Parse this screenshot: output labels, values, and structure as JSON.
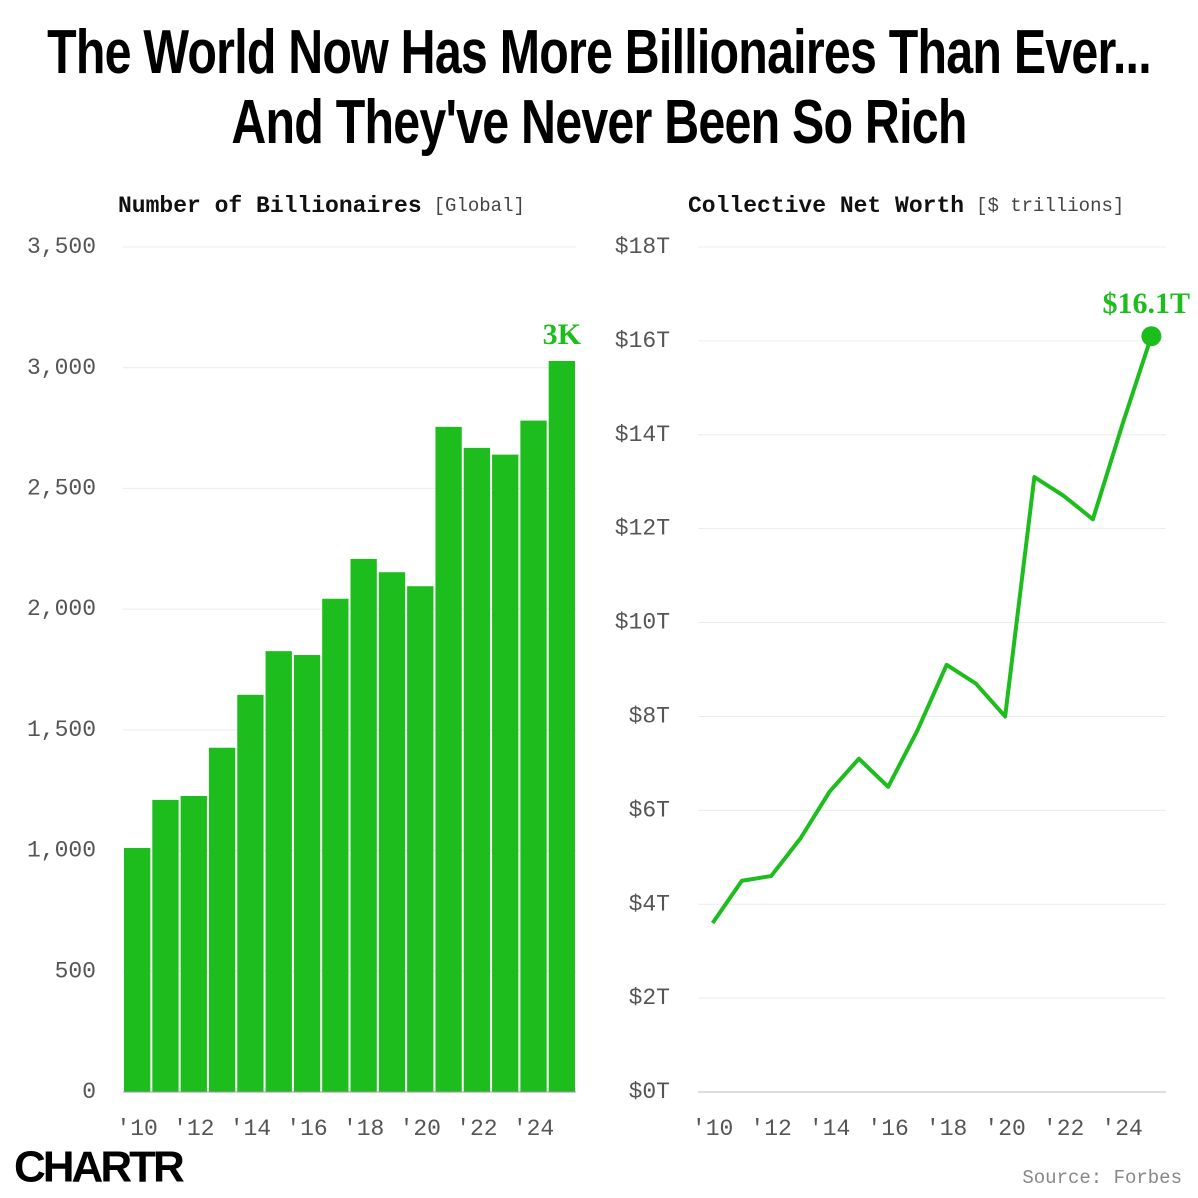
{
  "title": "The World Now Has More Billionaires Than Ever... And They've Never Been So Rich",
  "logo": "CHARTR",
  "source": "Source: Forbes",
  "chart_data": [
    {
      "type": "bar",
      "title": "Number of Billionaires",
      "subtitle": "[Global]",
      "categories": [
        "'10",
        null,
        "'12",
        null,
        "'14",
        null,
        "'16",
        null,
        "'18",
        null,
        "'20",
        null,
        "'22",
        null,
        "'24",
        null
      ],
      "values": [
        1011,
        1210,
        1226,
        1426,
        1645,
        1826,
        1810,
        2043,
        2208,
        2153,
        2095,
        2755,
        2668,
        2640,
        2781,
        3028
      ],
      "value_labels": [
        null,
        null,
        null,
        null,
        null,
        null,
        null,
        null,
        null,
        null,
        null,
        null,
        null,
        null,
        null,
        "3K"
      ],
      "color": "#1dbd1d",
      "ylim": [
        0,
        3500
      ],
      "yticks": [
        0,
        500,
        {
          "value": 1000,
          "label": "1,000"
        },
        {
          "value": 1500,
          "label": "1,500"
        },
        {
          "value": 2000,
          "label": "2,000"
        },
        {
          "value": 2500,
          "label": "2,500"
        },
        {
          "value": 3000,
          "label": "3,000"
        },
        {
          "value": 3500,
          "label": "3,500"
        }
      ],
      "grid": true
    },
    {
      "type": "line",
      "title": "Collective Net Worth",
      "subtitle": "[$ trillions]",
      "categories": [
        "'10",
        null,
        "'12",
        null,
        "'14",
        null,
        "'16",
        null,
        "'18",
        null,
        "'20",
        null,
        "'22",
        null,
        "'24",
        null
      ],
      "values": [
        3.6,
        4.5,
        4.6,
        5.4,
        6.4,
        7.1,
        6.5,
        7.7,
        9.1,
        8.7,
        8.0,
        13.1,
        12.7,
        12.2,
        14.2,
        16.1
      ],
      "value_labels": [
        null,
        null,
        null,
        null,
        null,
        null,
        null,
        null,
        null,
        null,
        null,
        null,
        null,
        null,
        null,
        "$16.1T"
      ],
      "color": "#1dbd1d",
      "ylim": [
        0,
        18
      ],
      "yticks": [
        {
          "value": 0,
          "label": "$0T"
        },
        {
          "value": 2,
          "label": "$2T"
        },
        {
          "value": 4,
          "label": "$4T"
        },
        {
          "value": 6,
          "label": "$6T"
        },
        {
          "value": 8,
          "label": "$8T"
        },
        {
          "value": 10,
          "label": "$10T"
        },
        {
          "value": 12,
          "label": "$12T"
        },
        {
          "value": 14,
          "label": "$14T"
        },
        {
          "value": 16,
          "label": "$16T"
        },
        {
          "value": 18,
          "label": "$18T"
        }
      ],
      "grid": true
    }
  ]
}
